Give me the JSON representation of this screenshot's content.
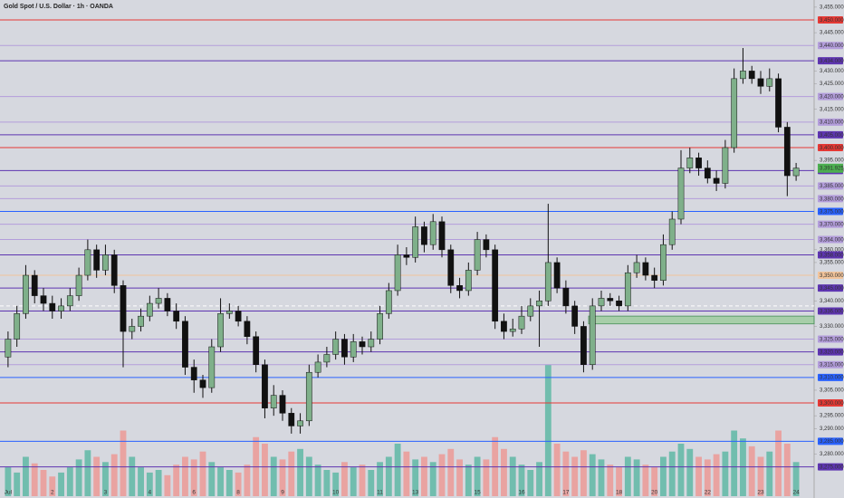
{
  "chart_data": {
    "type": "candlestick",
    "title": "Gold Spot / U.S. Dollar · 1h · OANDA",
    "categories": [
      "Jul",
      null,
      null,
      null,
      null,
      "2",
      null,
      null,
      null,
      null,
      null,
      "3",
      null,
      null,
      null,
      null,
      "4",
      null,
      null,
      null,
      null,
      "6",
      null,
      null,
      null,
      null,
      "8",
      null,
      null,
      null,
      null,
      "9",
      null,
      null,
      null,
      null,
      null,
      "10",
      null,
      null,
      null,
      null,
      "11",
      null,
      null,
      null,
      "13",
      null,
      null,
      null,
      null,
      null,
      null,
      "15",
      null,
      null,
      null,
      null,
      "16",
      null,
      null,
      null,
      null,
      "17",
      null,
      null,
      null,
      null,
      null,
      "18",
      null,
      null,
      null,
      "20",
      null,
      null,
      null,
      null,
      null,
      "22",
      null,
      null,
      null,
      null,
      null,
      "23",
      null,
      null,
      null,
      "24"
    ],
    "open": [
      3318,
      3325,
      3335,
      3350,
      3342,
      3339,
      3336,
      3338,
      3342,
      3350,
      3360,
      3352,
      3358,
      3346,
      3328,
      3330,
      3334,
      3339,
      3341,
      3336,
      3332,
      3314,
      3309,
      3306,
      3322,
      3335,
      3336,
      3332,
      3326,
      3315,
      3298,
      3303,
      3296,
      3291,
      3293,
      3312,
      3316,
      3319,
      3325,
      3318,
      3324,
      3322,
      3325,
      3335,
      3344,
      3358,
      3357,
      3369,
      3362,
      3371,
      3360,
      3346,
      3344,
      3352,
      3364,
      3360,
      3332,
      3328,
      3329,
      3334,
      3338,
      3340,
      3355,
      3345,
      3338,
      3330,
      3315,
      3338,
      3341,
      3340,
      3338,
      3351,
      3355,
      3350,
      3348,
      3362,
      3372,
      3392,
      3396,
      3392,
      3388,
      3386,
      3400,
      3427,
      3430,
      3427,
      3424,
      3427,
      3408,
      3389
    ],
    "high": [
      3328,
      3338,
      3354,
      3352,
      3345,
      3342,
      3341,
      3345,
      3353,
      3364,
      3362,
      3362,
      3360,
      3348,
      3333,
      3337,
      3342,
      3345,
      3343,
      3339,
      3334,
      3317,
      3311,
      3325,
      3341,
      3339,
      3338,
      3334,
      3328,
      3317,
      3307,
      3305,
      3298,
      3296,
      3315,
      3319,
      3322,
      3328,
      3327,
      3327,
      3326,
      3328,
      3338,
      3347,
      3362,
      3361,
      3373,
      3371,
      3374,
      3373,
      3362,
      3349,
      3355,
      3367,
      3366,
      3362,
      3335,
      3333,
      3338,
      3341,
      3344,
      3378,
      3357,
      3348,
      3340,
      3332,
      3341,
      3344,
      3343,
      3342,
      3354,
      3358,
      3357,
      3353,
      3366,
      3375,
      3399,
      3400,
      3398,
      3395,
      3391,
      3403,
      3431,
      3439,
      3432,
      3430,
      3431,
      3429,
      3410,
      3394
    ],
    "low": [
      3314,
      3322,
      3333,
      3339,
      3336,
      3333,
      3333,
      3336,
      3340,
      3348,
      3349,
      3350,
      3343,
      3314,
      3325,
      3328,
      3332,
      3337,
      3334,
      3329,
      3311,
      3304,
      3302,
      3304,
      3320,
      3333,
      3330,
      3323,
      3312,
      3294,
      3295,
      3293,
      3288,
      3288,
      3291,
      3310,
      3314,
      3317,
      3315,
      3316,
      3319,
      3320,
      3323,
      3333,
      3342,
      3354,
      3355,
      3359,
      3360,
      3357,
      3343,
      3341,
      3342,
      3350,
      3357,
      3329,
      3325,
      3326,
      3327,
      3332,
      3322,
      3338,
      3343,
      3335,
      3327,
      3312,
      3313,
      3336,
      3338,
      3336,
      3336,
      3349,
      3348,
      3345,
      3346,
      3360,
      3370,
      3390,
      3389,
      3386,
      3383,
      3384,
      3398,
      3425,
      3425,
      3421,
      3422,
      3406,
      3381,
      3387
    ],
    "close": [
      3325,
      3335,
      3350,
      3342,
      3339,
      3336,
      3338,
      3342,
      3350,
      3360,
      3352,
      3358,
      3346,
      3328,
      3330,
      3334,
      3339,
      3341,
      3336,
      3332,
      3314,
      3309,
      3306,
      3322,
      3335,
      3336,
      3332,
      3326,
      3315,
      3298,
      3303,
      3296,
      3291,
      3293,
      3312,
      3316,
      3319,
      3325,
      3318,
      3324,
      3322,
      3325,
      3335,
      3344,
      3358,
      3357,
      3369,
      3362,
      3371,
      3360,
      3346,
      3344,
      3352,
      3364,
      3360,
      3332,
      3328,
      3329,
      3334,
      3338,
      3340,
      3355,
      3345,
      3338,
      3330,
      3315,
      3338,
      3341,
      3340,
      3338,
      3351,
      3355,
      3350,
      3348,
      3362,
      3372,
      3392,
      3396,
      3392,
      3388,
      3386,
      3400,
      3427,
      3430,
      3427,
      3424,
      3427,
      3408,
      3389,
      3392
    ],
    "volume": [
      22,
      18,
      30,
      25,
      20,
      15,
      18,
      22,
      28,
      35,
      30,
      26,
      32,
      50,
      30,
      22,
      18,
      20,
      16,
      24,
      30,
      28,
      34,
      26,
      22,
      20,
      18,
      24,
      45,
      40,
      30,
      28,
      34,
      36,
      30,
      24,
      20,
      18,
      26,
      22,
      24,
      20,
      26,
      30,
      40,
      34,
      28,
      30,
      26,
      32,
      36,
      28,
      24,
      30,
      28,
      45,
      36,
      30,
      24,
      20,
      26,
      100,
      40,
      34,
      30,
      35,
      32,
      28,
      24,
      22,
      30,
      28,
      24,
      22,
      30,
      34,
      40,
      36,
      30,
      28,
      32,
      34,
      50,
      44,
      38,
      30,
      34,
      50,
      40,
      26
    ],
    "colors": {
      "up": "#7fb08a",
      "down": "#111111",
      "volume_up": "#5fb8a6",
      "volume_down": "#ec9a96",
      "background": "#d6d8df"
    },
    "ylim": [
      3263.5,
      3457.8
    ],
    "yticks": [
      {
        "value": 3455,
        "label": "3,455.000"
      },
      {
        "value": 3445,
        "label": "3,445.000"
      },
      {
        "value": 3430,
        "label": "3,430.000"
      },
      {
        "value": 3425,
        "label": "3,425.000"
      },
      {
        "value": 3415,
        "label": "3,415.000"
      },
      {
        "value": 3395,
        "label": "3,395.000"
      },
      {
        "value": 3360,
        "label": "3,360.000"
      },
      {
        "value": 3355,
        "label": "3,355.000"
      },
      {
        "value": 3340,
        "label": "3,340.000"
      },
      {
        "value": 3330,
        "label": "3,330.000"
      },
      {
        "value": 3305,
        "label": "3,305.000"
      },
      {
        "value": 3295,
        "label": "3,295.000"
      },
      {
        "value": 3290,
        "label": "3,290.000"
      },
      {
        "value": 3280,
        "label": "3,280.000"
      }
    ],
    "levels": [
      {
        "value": 3450,
        "label": "3,450.000",
        "color": "#e53935"
      },
      {
        "value": 3440,
        "label": "3,440.000",
        "color": "#b39ddb"
      },
      {
        "value": 3434,
        "label": "3,434.000",
        "color": "#5e35b1"
      },
      {
        "value": 3420,
        "label": "3,420.000",
        "color": "#b39ddb"
      },
      {
        "value": 3410,
        "label": "3,410.000",
        "color": "#b39ddb"
      },
      {
        "value": 3405,
        "label": "3,405.000",
        "color": "#5e35b1"
      },
      {
        "value": 3400,
        "label": "3,400.000",
        "color": "#e53935"
      },
      {
        "value": 3391,
        "label": "3,391.000",
        "color": "#5e35b1"
      },
      {
        "value": 3385,
        "label": "3,385.000",
        "color": "#b39ddb"
      },
      {
        "value": 3380,
        "label": "3,380.000",
        "color": "#b39ddb"
      },
      {
        "value": 3375,
        "label": "3,375.000",
        "color": "#2962ff"
      },
      {
        "value": 3370,
        "label": "3,370.000",
        "color": "#b39ddb"
      },
      {
        "value": 3364,
        "label": "3,364.000",
        "color": "#b39ddb"
      },
      {
        "value": 3358,
        "label": "3,358.000",
        "color": "#5e35b1"
      },
      {
        "value": 3350,
        "label": "3,350.000",
        "color": "#f2c49b"
      },
      {
        "value": 3345,
        "label": "3,345.000",
        "color": "#5e35b1"
      },
      {
        "value": 3336,
        "label": "3,336.000",
        "color": "#5e35b1"
      },
      {
        "value": 3325,
        "label": "3,325.000",
        "color": "#b39ddb"
      },
      {
        "value": 3320,
        "label": "3,320.000",
        "color": "#5e35b1"
      },
      {
        "value": 3315,
        "label": "3,315.000",
        "color": "#b39ddb"
      },
      {
        "value": 3310,
        "label": "3,310.000",
        "color": "#2962ff"
      },
      {
        "value": 3300,
        "label": "3,300.000",
        "color": "#e53935"
      },
      {
        "value": 3285,
        "label": "3,285.000",
        "color": "#2962ff"
      },
      {
        "value": 3275,
        "label": "3,275.000",
        "color": "#5e35b1"
      }
    ],
    "current_price": {
      "value": 3391.925,
      "label": "3,391.925",
      "color": "#4caf50"
    },
    "dashed_line": 3338,
    "zone": [
      3331,
      3334
    ]
  }
}
